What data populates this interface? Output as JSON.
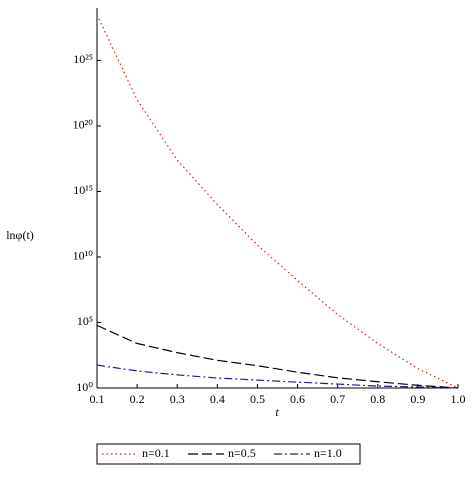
{
  "chart_data": {
    "type": "line",
    "xlabel": "t",
    "ylabel": "lnφ(t)",
    "log_y": true,
    "x": [
      0.1,
      0.2,
      0.3,
      0.4,
      0.5,
      0.6,
      0.7,
      0.8,
      0.9,
      1.0
    ],
    "series": [
      {
        "name": "n=0.1",
        "color": "#d62020",
        "dash": "dotted",
        "values": [
          3e+28,
          1e+22,
          2.5e+17,
          100000000000000.0,
          80000000000.0,
          160000000.0,
          400000.0,
          2500,
          30,
          1
        ]
      },
      {
        "name": "n=0.5",
        "color": "#000000",
        "dash": "dashed",
        "values": [
          60000,
          2500,
          500,
          130,
          50,
          16,
          6,
          3,
          1.6,
          1
        ]
      },
      {
        "name": "n=1.0",
        "color": "#1a1aa8",
        "dash": "dashdot",
        "values": [
          56,
          20,
          10,
          5.8,
          4,
          2.8,
          2,
          1.4,
          1.2,
          1
        ]
      }
    ],
    "xlim": [
      0.1,
      1.0
    ],
    "xticks": [
      0.1,
      0.2,
      0.3,
      0.4,
      0.5,
      0.6,
      0.7,
      0.8,
      0.9,
      {
        "value": 1.0,
        "label": "1.0"
      }
    ],
    "ylim": [
      1,
      1e+29
    ],
    "yticks": [
      {
        "value": 1,
        "label": "10⁰"
      },
      {
        "value": 100000.0,
        "label": "10⁵"
      },
      {
        "value": 10000000000.0,
        "label": "10¹⁰"
      },
      {
        "value": 1000000000000000.0,
        "label": "10¹⁵"
      },
      {
        "value": 1e+20,
        "label": "10²⁰"
      },
      {
        "value": 1e+25,
        "label": "10²⁵"
      }
    ],
    "legend": "bottom"
  }
}
